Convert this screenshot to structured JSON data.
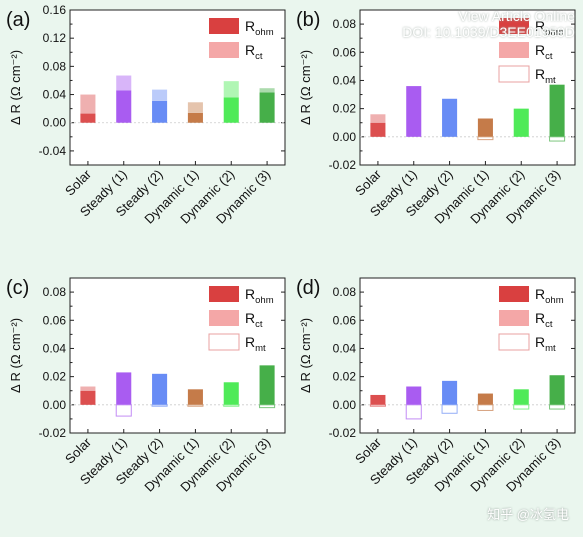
{
  "header": {
    "link_label": "View Article Online",
    "doi": "DOI: 10.1039/D3EE01959D"
  },
  "watermark": "知乎 @冰氢电",
  "colors": {
    "background": "#eaf6ee",
    "categories": [
      "#d94040",
      "#a24ef0",
      "#5b82f4",
      "#c0703a",
      "#40e84a",
      "#36a83a"
    ]
  },
  "chart_data": [
    {
      "type": "bar",
      "stacked": true,
      "panel_label": "(a)",
      "ylabel": "Δ R (Ω cm⁻²)",
      "ylim": [
        -0.06,
        0.16
      ],
      "yticks": [
        "-0.04",
        "0.00",
        "0.04",
        "0.08",
        "0.12",
        "0.16"
      ],
      "categories": [
        "Solar",
        "Steady (1)",
        "Steady (2)",
        "Dynamic (1)",
        "Dynamic (2)",
        "Dynamic (3)"
      ],
      "legend": {
        "placement": "top-right",
        "entries": [
          "R_ohm",
          "R_ct"
        ]
      },
      "series": [
        {
          "name": "R_ohm",
          "values": [
            0.013,
            0.046,
            0.031,
            0.014,
            0.036,
            0.043
          ]
        },
        {
          "name": "R_ct",
          "values": [
            0.027,
            0.021,
            0.016,
            0.015,
            0.023,
            0.006
          ]
        }
      ]
    },
    {
      "type": "bar",
      "stacked": true,
      "panel_label": "(b)",
      "ylabel": "Δ R (Ω cm⁻²)",
      "ylim": [
        -0.02,
        0.09
      ],
      "yticks": [
        "-0.02",
        "0.00",
        "0.02",
        "0.04",
        "0.06",
        "0.08"
      ],
      "categories": [
        "Solar",
        "Steady (1)",
        "Steady (2)",
        "Dynamic (1)",
        "Dynamic (2)",
        "Dynamic (3)"
      ],
      "legend": {
        "placement": "top-right",
        "entries": [
          "R_ohm",
          "R_ct",
          "R_mt"
        ]
      },
      "series": [
        {
          "name": "R_ohm",
          "values": [
            0.01,
            0.036,
            0.027,
            0.013,
            0.02,
            0.037
          ]
        },
        {
          "name": "R_ct",
          "values": [
            0.006,
            0.0,
            0.0,
            0.0,
            0.0,
            0.0
          ]
        },
        {
          "name": "R_mt",
          "values": [
            0.0,
            0.0,
            0.0,
            -0.002,
            0.0,
            -0.003
          ]
        }
      ]
    },
    {
      "type": "bar",
      "stacked": true,
      "panel_label": "(c)",
      "ylabel": "Δ R (Ω cm⁻²)",
      "ylim": [
        -0.02,
        0.09
      ],
      "yticks": [
        "-0.02",
        "0.00",
        "0.02",
        "0.04",
        "0.06",
        "0.08"
      ],
      "categories": [
        "Solar",
        "Steady (1)",
        "Steady (2)",
        "Dynamic (1)",
        "Dynamic (2)",
        "Dynamic (3)"
      ],
      "legend": {
        "placement": "top-right",
        "entries": [
          "R_ohm",
          "R_ct",
          "R_mt"
        ]
      },
      "series": [
        {
          "name": "R_ohm",
          "values": [
            0.01,
            0.023,
            0.022,
            0.011,
            0.016,
            0.028
          ]
        },
        {
          "name": "R_ct",
          "values": [
            0.003,
            0.0,
            0.0,
            0.0,
            0.0,
            0.0
          ]
        },
        {
          "name": "R_mt",
          "values": [
            0.0,
            -0.008,
            -0.001,
            -0.001,
            -0.001,
            -0.002
          ]
        }
      ]
    },
    {
      "type": "bar",
      "stacked": true,
      "panel_label": "(d)",
      "ylabel": "Δ R (Ω cm⁻²)",
      "ylim": [
        -0.02,
        0.09
      ],
      "yticks": [
        "-0.02",
        "0.00",
        "0.02",
        "0.04",
        "0.06",
        "0.08"
      ],
      "categories": [
        "Solar",
        "Steady (1)",
        "Steady (2)",
        "Dynamic (1)",
        "Dynamic (2)",
        "Dynamic (3)"
      ],
      "legend": {
        "placement": "top-right",
        "entries": [
          "R_ohm",
          "R_ct",
          "R_mt"
        ]
      },
      "series": [
        {
          "name": "R_ohm",
          "values": [
            0.007,
            0.013,
            0.017,
            0.008,
            0.011,
            0.021
          ]
        },
        {
          "name": "R_ct",
          "values": [
            0.0,
            0.0,
            0.0,
            0.0,
            0.0,
            0.0
          ]
        },
        {
          "name": "R_mt",
          "values": [
            -0.001,
            -0.01,
            -0.006,
            -0.004,
            -0.003,
            -0.003
          ]
        }
      ]
    }
  ]
}
